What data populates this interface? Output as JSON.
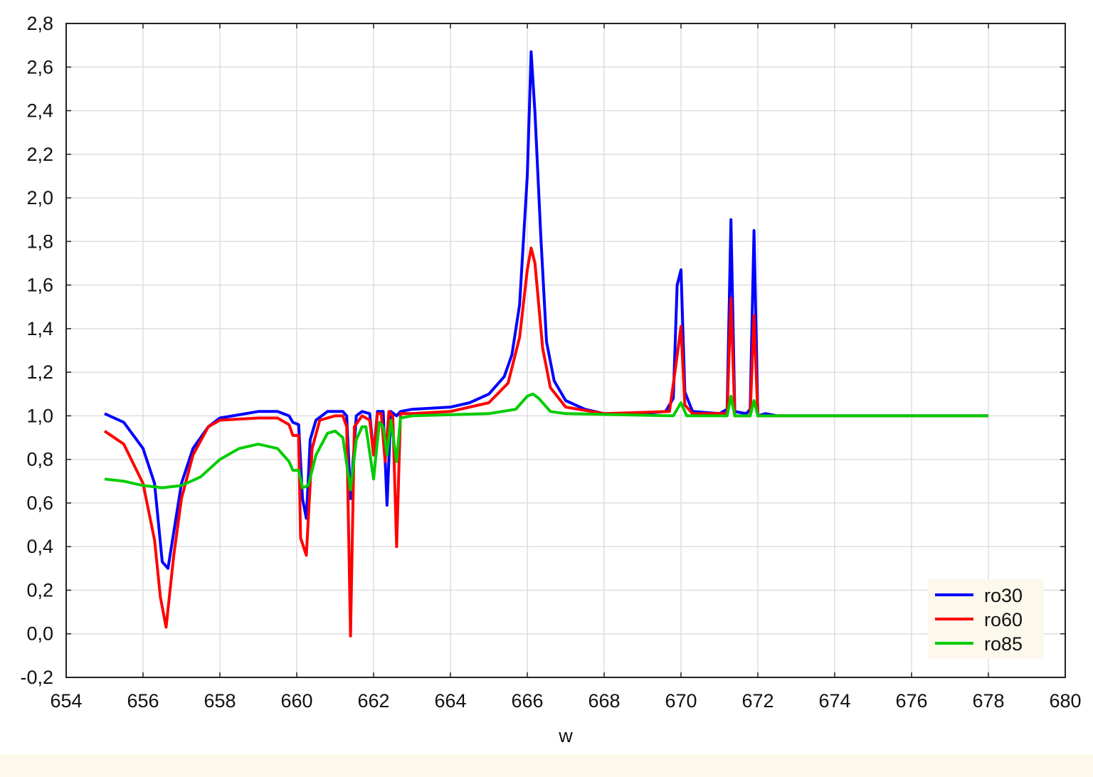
{
  "chart_data": {
    "type": "line",
    "xlabel": "w",
    "ylabel": "",
    "xlim": [
      654,
      680
    ],
    "ylim": [
      -0.2,
      2.8
    ],
    "xticks": [
      "654",
      "656",
      "658",
      "660",
      "662",
      "664",
      "666",
      "668",
      "670",
      "672",
      "674",
      "676",
      "678",
      "680"
    ],
    "yticks": [
      "-0,2",
      "0,0",
      "0,2",
      "0,4",
      "0,6",
      "0,8",
      "1,0",
      "1,2",
      "1,4",
      "1,6",
      "1,8",
      "2,0",
      "2,2",
      "2,4",
      "2,6",
      "2,8"
    ],
    "grid": true,
    "legend": "bottom-right",
    "series": [
      {
        "name": "ro30",
        "color": "#0000ff",
        "x": [
          655,
          655.5,
          656,
          656.3,
          656.5,
          656.65,
          657,
          657.3,
          657.7,
          658,
          659,
          659.5,
          659.8,
          659.9,
          660.05,
          660.15,
          660.25,
          660.35,
          660.5,
          660.8,
          661.2,
          661.3,
          661.4,
          661.55,
          661.7,
          661.9,
          662.0,
          662.1,
          662.25,
          662.35,
          662.45,
          662.6,
          662.7,
          663,
          664,
          664.5,
          665,
          665.4,
          665.6,
          665.8,
          666.0,
          666.1,
          666.2,
          666.35,
          666.5,
          666.7,
          667,
          667.5,
          668,
          669,
          669.6,
          669.8,
          669.9,
          670.0,
          670.1,
          670.3,
          671.0,
          671.2,
          671.3,
          671.4,
          671.7,
          671.8,
          671.9,
          672.0,
          672.2,
          672.5,
          673,
          678
        ],
        "y": [
          1.01,
          0.97,
          0.85,
          0.69,
          0.33,
          0.3,
          0.69,
          0.85,
          0.95,
          0.99,
          1.02,
          1.02,
          1.0,
          0.97,
          0.96,
          0.62,
          0.53,
          0.89,
          0.98,
          1.02,
          1.02,
          1.0,
          0.62,
          1.0,
          1.02,
          1.01,
          0.82,
          1.02,
          1.02,
          0.59,
          1.02,
          1.0,
          1.02,
          1.03,
          1.04,
          1.06,
          1.1,
          1.18,
          1.28,
          1.51,
          2.1,
          2.67,
          2.39,
          1.83,
          1.34,
          1.16,
          1.07,
          1.03,
          1.01,
          1.01,
          1.02,
          1.08,
          1.6,
          1.67,
          1.11,
          1.02,
          1.01,
          1.03,
          1.9,
          1.02,
          1.01,
          1.03,
          1.85,
          1.0,
          1.01,
          1.0,
          1.0,
          1.0
        ]
      },
      {
        "name": "ro60",
        "color": "#ff0000",
        "x": [
          655,
          655.5,
          656,
          656.3,
          656.45,
          656.6,
          656.8,
          657,
          657.3,
          657.7,
          658,
          659,
          659.5,
          659.8,
          659.9,
          660.05,
          660.1,
          660.25,
          660.4,
          660.6,
          661,
          661.2,
          661.3,
          661.4,
          661.5,
          661.7,
          661.9,
          662.0,
          662.1,
          662.2,
          662.3,
          662.4,
          662.5,
          662.6,
          662.7,
          663,
          664,
          665,
          665.5,
          665.8,
          666.0,
          666.1,
          666.2,
          666.4,
          666.6,
          667,
          668,
          669.7,
          669.85,
          670.0,
          670.1,
          670.3,
          671.2,
          671.3,
          671.4,
          671.8,
          671.9,
          672.0,
          673,
          678
        ],
        "y": [
          0.93,
          0.87,
          0.69,
          0.43,
          0.17,
          0.03,
          0.36,
          0.62,
          0.82,
          0.95,
          0.98,
          0.99,
          0.99,
          0.96,
          0.91,
          0.91,
          0.44,
          0.36,
          0.85,
          0.98,
          1.0,
          1.0,
          0.95,
          -0.01,
          0.95,
          1.0,
          0.98,
          0.82,
          1.01,
          1.01,
          0.79,
          1.02,
          1.0,
          0.4,
          1.01,
          1.01,
          1.02,
          1.06,
          1.15,
          1.36,
          1.67,
          1.77,
          1.7,
          1.31,
          1.13,
          1.04,
          1.01,
          1.02,
          1.21,
          1.41,
          1.05,
          1.01,
          1.01,
          1.54,
          1.0,
          1.0,
          1.46,
          1.0,
          1.0,
          1.0
        ]
      },
      {
        "name": "ro85",
        "color": "#00cc00",
        "x": [
          655,
          655.5,
          656,
          656.5,
          657,
          657.5,
          658,
          658.5,
          659,
          659.5,
          659.8,
          659.9,
          660.05,
          660.15,
          660.3,
          660.5,
          660.8,
          661.0,
          661.2,
          661.4,
          661.55,
          661.7,
          661.8,
          662.0,
          662.15,
          662.25,
          662.35,
          662.45,
          662.6,
          662.7,
          663,
          665,
          665.7,
          666.0,
          666.15,
          666.3,
          666.6,
          667,
          669.8,
          670.0,
          670.15,
          671.2,
          671.3,
          671.4,
          671.8,
          671.9,
          672.0,
          678
        ],
        "y": [
          0.71,
          0.7,
          0.68,
          0.67,
          0.68,
          0.72,
          0.8,
          0.85,
          0.87,
          0.85,
          0.79,
          0.75,
          0.75,
          0.67,
          0.68,
          0.82,
          0.92,
          0.93,
          0.9,
          0.66,
          0.89,
          0.95,
          0.95,
          0.71,
          0.97,
          0.95,
          0.82,
          0.98,
          0.79,
          0.99,
          1.0,
          1.01,
          1.03,
          1.09,
          1.1,
          1.08,
          1.02,
          1.01,
          1.0,
          1.06,
          1.0,
          1.0,
          1.09,
          1.0,
          1.0,
          1.07,
          1.0,
          1.0
        ]
      }
    ]
  }
}
